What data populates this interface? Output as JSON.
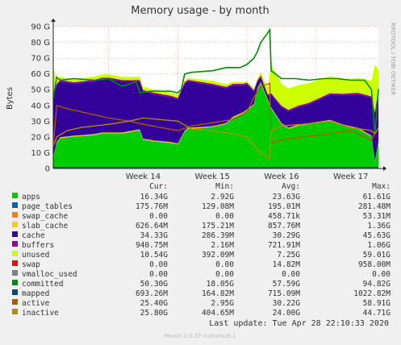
{
  "chart_data": {
    "type": "area",
    "title": "Memory usage - by month",
    "ylabel": "Bytes",
    "side_label": "RRDTOOL / TOBI OETIKER",
    "footer": "Munin 2.0.37-1ubuntu0.1",
    "last_update": "Last update:  Tue Apr 28 22:10:33 2020",
    "y_unit": "G",
    "ylim": [
      0,
      90
    ],
    "yticks": [
      "0",
      "10 G",
      "20 G",
      "30 G",
      "40 G",
      "50 G",
      "60 G",
      "70 G",
      "80 G",
      "90 G"
    ],
    "x_ticks": [
      "Week 14",
      "Week 15",
      "Week 16",
      "Week 17"
    ],
    "x_range_weeks": [
      13.2,
      17.9
    ],
    "legend_headers": [
      "Cur:",
      "Min:",
      "Avg:",
      "Max:"
    ],
    "series_style": {
      "stacked_area": [
        "apps",
        "page_tables",
        "swap_cache",
        "slab_cache",
        "cache",
        "buffers",
        "unused",
        "swap"
      ],
      "lines": [
        "committed",
        "mapped",
        "active",
        "inactive"
      ]
    },
    "series": [
      {
        "name": "apps",
        "color": "#00cc00",
        "cur": "16.34G",
        "min": "2.92G",
        "avg": "23.63G",
        "max": "61.61G",
        "x": [
          13.2,
          13.25,
          13.3,
          13.5,
          13.8,
          13.9,
          14.2,
          14.45,
          14.5,
          14.65,
          14.9,
          15.0,
          15.1,
          15.15,
          15.5,
          15.7,
          15.8,
          15.95,
          16.1,
          16.15,
          16.2,
          16.35,
          16.5,
          16.6,
          16.75,
          16.9,
          17.2,
          17.4,
          17.6,
          17.8,
          17.85,
          17.9
        ],
        "values": [
          6,
          16,
          19,
          20,
          21,
          22,
          22,
          24,
          18,
          17,
          16,
          15,
          23,
          25,
          26,
          28,
          32,
          35,
          40,
          50,
          54,
          38,
          28,
          25,
          27,
          28,
          30,
          27,
          25,
          20,
          4,
          16
        ]
      },
      {
        "name": "page_tables",
        "color": "#0066b3",
        "cur": "175.76M",
        "min": "129.08M",
        "avg": "195.01M",
        "max": "281.48M",
        "x": [
          13.2,
          17.9
        ],
        "values": [
          0.18,
          0.18
        ]
      },
      {
        "name": "swap_cache",
        "color": "#ff8000",
        "cur": "0.00",
        "min": "0.00",
        "avg": "458.71k",
        "max": "53.31M",
        "x": [
          13.2,
          17.9
        ],
        "values": [
          0,
          0
        ]
      },
      {
        "name": "slab_cache",
        "color": "#ffcc00",
        "cur": "626.64M",
        "min": "175.21M",
        "avg": "857.76M",
        "max": "1.36G",
        "x": [
          13.2,
          17.9
        ],
        "values": [
          0.63,
          0.63
        ]
      },
      {
        "name": "cache",
        "color": "#330099",
        "cur": "34.33G",
        "min": "286.39M",
        "avg": "30.29G",
        "max": "45.63G",
        "x": [
          13.2,
          13.25,
          13.5,
          14.0,
          14.5,
          15.0,
          15.1,
          15.5,
          16.0,
          16.15,
          16.3,
          16.35,
          16.5,
          16.9,
          17.2,
          17.5,
          17.8,
          17.85,
          17.9
        ],
        "values": [
          40,
          36,
          33,
          34,
          30,
          28,
          30,
          26,
          16,
          4,
          2,
          8,
          10,
          12,
          16,
          20,
          24,
          30,
          34.33
        ]
      },
      {
        "name": "buffers",
        "color": "#990099",
        "cur": "940.75M",
        "min": "2.16M",
        "avg": "721.91M",
        "max": "1.06G",
        "x": [
          13.2,
          17.9
        ],
        "values": [
          0.9,
          0.94
        ]
      },
      {
        "name": "unused",
        "color": "#ccff00",
        "cur": "10.54G",
        "min": "392.09M",
        "avg": "7.25G",
        "max": "59.01G",
        "x": [
          13.2,
          13.25,
          14.0,
          15.0,
          15.1,
          15.5,
          16.0,
          16.15,
          16.3,
          16.35,
          16.5,
          17.0,
          17.5,
          17.8,
          17.85,
          17.9
        ],
        "values": [
          16,
          2,
          2,
          2,
          1,
          2,
          1,
          1,
          4,
          18,
          14,
          12,
          9,
          10,
          30,
          10.54
        ]
      },
      {
        "name": "swap",
        "color": "#ff0000",
        "cur": "0.00",
        "min": "0.00",
        "avg": "14.82M",
        "max": "958.00M",
        "x": [
          13.2,
          17.9
        ],
        "values": [
          0,
          0
        ]
      },
      {
        "name": "vmalloc_used",
        "color": "#808080",
        "cur": "0.00",
        "min": "0.00",
        "avg": "0.00",
        "max": "0.00",
        "x": [
          13.2,
          17.9
        ],
        "values": [
          0,
          0
        ]
      },
      {
        "name": "committed",
        "color": "#008f00",
        "cur": "50.30G",
        "min": "18.05G",
        "avg": "57.59G",
        "max": "94.82G",
        "x": [
          13.2,
          13.25,
          13.3,
          13.5,
          13.8,
          14.0,
          14.2,
          14.4,
          14.45,
          14.6,
          14.9,
          15.0,
          15.05,
          15.1,
          15.2,
          15.5,
          15.7,
          15.9,
          16.0,
          16.1,
          16.15,
          16.2,
          16.3,
          16.33,
          16.35,
          16.5,
          16.7,
          16.9,
          17.1,
          17.3,
          17.5,
          17.7,
          17.8,
          17.85,
          17.9
        ],
        "values": [
          44,
          58,
          56,
          57,
          56,
          57,
          52,
          55,
          48,
          49,
          49,
          48,
          50,
          60,
          61,
          62,
          64,
          64,
          66,
          70,
          74,
          80,
          86,
          88,
          62,
          57,
          57,
          56,
          57,
          57,
          56,
          56,
          50,
          22,
          50.3
        ]
      },
      {
        "name": "mapped",
        "color": "#00487d",
        "cur": "693.26M",
        "min": "164.82M",
        "avg": "715.09M",
        "max": "1022.82M",
        "x": [
          13.2,
          17.9
        ],
        "values": [
          0.7,
          0.7
        ]
      },
      {
        "name": "active",
        "color": "#b35a00",
        "cur": "25.40G",
        "min": "2.95G",
        "avg": "30.22G",
        "max": "58.91G",
        "x": [
          13.2,
          13.25,
          13.4,
          13.6,
          14.0,
          14.3,
          14.5,
          15.0,
          15.2,
          15.5,
          15.8,
          16.0,
          16.1,
          16.2,
          16.33,
          16.35,
          16.5,
          16.8,
          17.2,
          17.5,
          17.8,
          17.85,
          17.9
        ],
        "values": [
          14,
          40,
          38,
          36,
          32,
          30,
          28,
          24,
          27,
          29,
          31,
          36,
          45,
          52,
          54,
          16,
          18,
          20,
          22,
          24,
          18,
          22,
          25.4
        ]
      },
      {
        "name": "inactive",
        "color": "#b38f00",
        "cur": "25.80G",
        "min": "404.65M",
        "avg": "24.00G",
        "max": "44.71G",
        "x": [
          13.2,
          13.25,
          13.4,
          13.6,
          14.0,
          14.3,
          14.5,
          15.0,
          15.2,
          15.5,
          15.8,
          16.0,
          16.1,
          16.2,
          16.33,
          16.35,
          16.5,
          16.8,
          17.2,
          17.5,
          17.8,
          17.85,
          17.9
        ],
        "values": [
          14,
          20,
          24,
          26,
          28,
          30,
          32,
          30,
          25,
          24,
          22,
          20,
          15,
          10,
          6,
          24,
          27,
          28,
          30,
          26,
          24,
          22,
          25.8
        ]
      }
    ]
  }
}
